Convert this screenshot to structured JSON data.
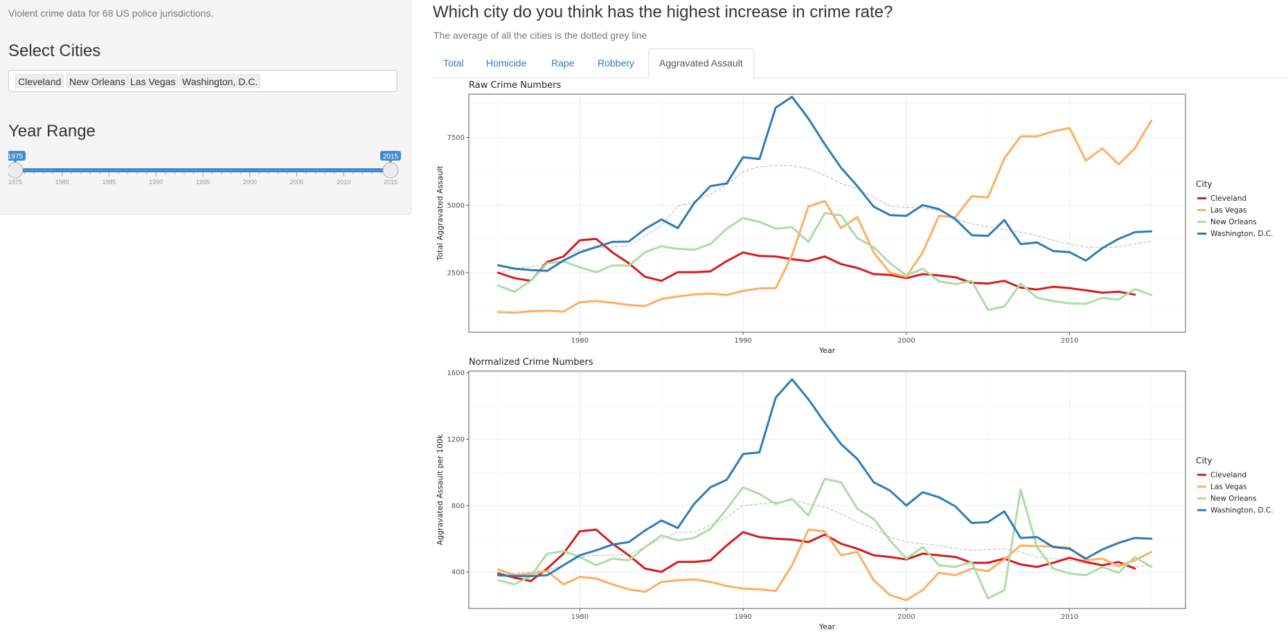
{
  "sidebar": {
    "intro": "Violent crime data for 68 US police jurisdictions.",
    "select_cities_label": "Select Cities",
    "selected_cities": [
      "Cleveland",
      "New Orleans",
      "Las Vegas",
      "Washington, D.C."
    ],
    "year_range_label": "Year Range",
    "year_range": {
      "min": 1975,
      "max": 2015,
      "from": 1975,
      "to": 2015,
      "from_label": "1975",
      "to_label": "2015",
      "ticks": [
        "1975",
        "1980",
        "1985",
        "1990",
        "1995",
        "2000",
        "2005",
        "2010",
        "2015"
      ]
    },
    "accent_color": "#428bca"
  },
  "main": {
    "title": "Which city do you think has the highest increase in crime rate?",
    "subtitle": "The average of all the cities is the dotted grey line",
    "tabs": [
      {
        "label": "Total",
        "active": false
      },
      {
        "label": "Homicide",
        "active": false
      },
      {
        "label": "Rape",
        "active": false
      },
      {
        "label": "Robbery",
        "active": false
      },
      {
        "label": "Aggravated Assault",
        "active": true
      }
    ]
  },
  "chart_data": [
    {
      "type": "line",
      "title": "Raw Crime Numbers",
      "xlabel": "Year",
      "ylabel": "Total Aggravated Assault",
      "xlim": [
        1973.2,
        2017.1
      ],
      "ylim": [
        300,
        9100
      ],
      "xticks": [
        1980,
        1990,
        2000,
        2010
      ],
      "yticks": [
        2500,
        5000,
        7500
      ],
      "legend_title": "City",
      "legend_position": "right",
      "grid": true,
      "x": [
        1975,
        1976,
        1977,
        1978,
        1979,
        1980,
        1981,
        1982,
        1983,
        1984,
        1985,
        1986,
        1987,
        1988,
        1989,
        1990,
        1991,
        1992,
        1993,
        1994,
        1995,
        1996,
        1997,
        1998,
        1999,
        2000,
        2001,
        2002,
        2003,
        2004,
        2005,
        2006,
        2007,
        2008,
        2009,
        2010,
        2011,
        2012,
        2013,
        2014,
        2015
      ],
      "series": [
        {
          "name": "Cleveland",
          "color": "#d7191c",
          "values": [
            2500,
            2300,
            2200,
            2900,
            3100,
            3700,
            3750,
            3250,
            2850,
            2350,
            2200,
            2520,
            2520,
            2550,
            2930,
            3250,
            3120,
            3100,
            3000,
            2930,
            3100,
            2820,
            2680,
            2450,
            2420,
            2300,
            2450,
            2400,
            2330,
            2130,
            2100,
            2200,
            1950,
            1880,
            1980,
            1930,
            1850,
            1760,
            1800,
            1690,
            null
          ],
          "style": "solid"
        },
        {
          "name": "Las Vegas",
          "color": "#fdae61",
          "values": [
            1050,
            1020,
            1080,
            1100,
            1060,
            1410,
            1460,
            1390,
            1310,
            1270,
            1530,
            1620,
            1700,
            1730,
            1680,
            1830,
            1920,
            1930,
            3150,
            4950,
            5150,
            4150,
            4560,
            3250,
            2500,
            2350,
            3250,
            4600,
            4550,
            5330,
            5280,
            6720,
            7540,
            7540,
            7720,
            7850,
            6640,
            7100,
            6500,
            7100,
            8120
          ],
          "style": "solid"
        },
        {
          "name": "New Orleans",
          "color": "#abdda4",
          "values": [
            2030,
            1800,
            2200,
            2850,
            2920,
            2700,
            2520,
            2770,
            2760,
            3260,
            3480,
            3380,
            3350,
            3560,
            4130,
            4520,
            4380,
            4130,
            4180,
            3640,
            4700,
            4620,
            3780,
            3450,
            2850,
            2400,
            2650,
            2180,
            2080,
            2200,
            1130,
            1250,
            2100,
            1580,
            1450,
            1370,
            1350,
            1570,
            1510,
            1900,
            1680
          ],
          "style": "solid"
        },
        {
          "name": "Washington, D.C.",
          "color": "#2c7bb6",
          "values": [
            2780,
            2650,
            2600,
            2570,
            2950,
            3250,
            3450,
            3640,
            3650,
            4120,
            4470,
            4150,
            5070,
            5700,
            5800,
            6770,
            6700,
            8600,
            9000,
            8200,
            7250,
            6380,
            5700,
            4940,
            4630,
            4600,
            5000,
            4850,
            4480,
            3890,
            3860,
            4450,
            3560,
            3620,
            3300,
            3260,
            2950,
            3410,
            3750,
            4000,
            4030
          ],
          "style": "solid"
        },
        {
          "name": "Average",
          "color": "#b8b8b8",
          "values": [
            2500,
            2650,
            2720,
            2850,
            3100,
            3350,
            3420,
            3450,
            3500,
            3850,
            4250,
            4950,
            5130,
            5400,
            5750,
            6250,
            6420,
            6460,
            6450,
            6350,
            6100,
            5800,
            5600,
            5300,
            4950,
            4920,
            4900,
            4800,
            4500,
            4300,
            4200,
            4100,
            4000,
            3870,
            3700,
            3560,
            3450,
            3420,
            3450,
            3560,
            3670
          ],
          "style": "dashed"
        }
      ]
    },
    {
      "type": "line",
      "title": "Normalized Crime Numbers",
      "xlabel": "Year",
      "ylabel": "Aggravated Assault per 100k",
      "xlim": [
        1973.2,
        2017.1
      ],
      "ylim": [
        180,
        1610
      ],
      "xticks": [
        1980,
        1990,
        2000,
        2010
      ],
      "yticks": [
        400,
        800,
        1200,
        1600
      ],
      "legend_title": "City",
      "legend_position": "right",
      "grid": true,
      "x": [
        1975,
        1976,
        1977,
        1978,
        1979,
        1980,
        1981,
        1982,
        1983,
        1984,
        1985,
        1986,
        1987,
        1988,
        1989,
        1990,
        1991,
        1992,
        1993,
        1994,
        1995,
        1996,
        1997,
        1998,
        1999,
        2000,
        2001,
        2002,
        2003,
        2004,
        2005,
        2006,
        2007,
        2008,
        2009,
        2010,
        2011,
        2012,
        2013,
        2014,
        2015
      ],
      "series": [
        {
          "name": "Cleveland",
          "color": "#d7191c",
          "values": [
            390,
            365,
            345,
            420,
            510,
            645,
            655,
            570,
            500,
            420,
            400,
            460,
            460,
            470,
            560,
            640,
            610,
            600,
            595,
            580,
            625,
            570,
            540,
            500,
            490,
            475,
            510,
            500,
            490,
            455,
            455,
            480,
            445,
            430,
            455,
            485,
            460,
            440,
            460,
            420,
            null
          ],
          "style": "solid"
        },
        {
          "name": "Las Vegas",
          "color": "#fdae61",
          "values": [
            415,
            380,
            390,
            405,
            325,
            370,
            360,
            325,
            295,
            280,
            340,
            350,
            355,
            340,
            315,
            300,
            295,
            285,
            440,
            655,
            645,
            500,
            520,
            350,
            260,
            230,
            290,
            395,
            380,
            420,
            405,
            475,
            560,
            555,
            555,
            545,
            470,
            480,
            435,
            470,
            520
          ],
          "style": "solid"
        },
        {
          "name": "New Orleans",
          "color": "#abdda4",
          "values": [
            350,
            325,
            375,
            510,
            525,
            490,
            440,
            480,
            470,
            550,
            620,
            590,
            605,
            660,
            780,
            910,
            870,
            810,
            840,
            740,
            960,
            940,
            780,
            720,
            590,
            480,
            550,
            440,
            430,
            460,
            240,
            290,
            895,
            550,
            420,
            390,
            380,
            430,
            395,
            490,
            430
          ],
          "style": "solid"
        },
        {
          "name": "Washington, D.C.",
          "color": "#2c7bb6",
          "values": [
            380,
            375,
            375,
            380,
            440,
            500,
            530,
            565,
            580,
            650,
            710,
            665,
            810,
            910,
            955,
            1110,
            1120,
            1450,
            1560,
            1440,
            1300,
            1170,
            1080,
            940,
            890,
            800,
            880,
            850,
            795,
            695,
            700,
            765,
            605,
            610,
            550,
            540,
            480,
            535,
            575,
            605,
            600
          ],
          "style": "solid"
        },
        {
          "name": "Average",
          "color": "#b8b8b8",
          "values": [
            400,
            390,
            400,
            410,
            440,
            490,
            500,
            500,
            505,
            550,
            600,
            640,
            640,
            680,
            730,
            800,
            810,
            820,
            830,
            810,
            790,
            750,
            700,
            660,
            610,
            580,
            570,
            560,
            540,
            530,
            535,
            540,
            520,
            490,
            480,
            470,
            450,
            440,
            430,
            430,
            440
          ],
          "style": "dashed"
        }
      ]
    }
  ]
}
